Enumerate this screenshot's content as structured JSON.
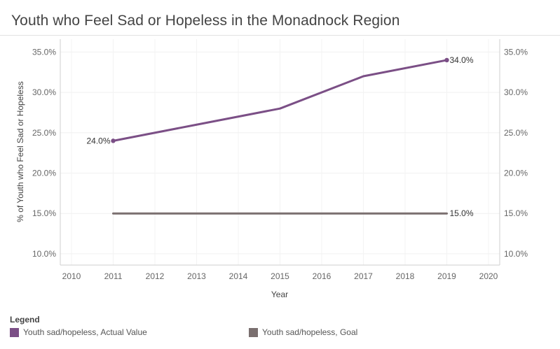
{
  "title": "Youth who Feel Sad or Hopeless in the Monadnock Region",
  "chart_data": {
    "type": "line",
    "title": "Youth who Feel Sad or Hopeless in the Monadnock Region",
    "xlabel": "Year",
    "ylabel": "% of Youth who Feel Sad or Hopeless",
    "xlim": [
      2010,
      2020
    ],
    "ylim": [
      10,
      35
    ],
    "x_ticks": [
      "2010",
      "2011",
      "2012",
      "2013",
      "2014",
      "2015",
      "2016",
      "2017",
      "2018",
      "2019",
      "2020"
    ],
    "y_ticks": [
      "10.0%",
      "15.0%",
      "20.0%",
      "25.0%",
      "30.0%",
      "35.0%"
    ],
    "y_tick_values": [
      10,
      15,
      20,
      25,
      30,
      35
    ],
    "grid": true,
    "series": [
      {
        "name": "Youth sad/hopeless, Actual Value",
        "color": "#7b4f86",
        "x": [
          2011,
          2013,
          2015,
          2017,
          2019
        ],
        "values": [
          24,
          26,
          28,
          32,
          34
        ],
        "labels": [
          {
            "x": 2011,
            "text": "24.0%",
            "side": "left"
          },
          {
            "x": 2019,
            "text": "34.0%",
            "side": "right"
          }
        ]
      },
      {
        "name": "Youth sad/hopeless, Goal",
        "color": "#7a6f6f",
        "x": [
          2011,
          2019
        ],
        "values": [
          15,
          15
        ],
        "labels": [
          {
            "x": 2019,
            "text": "15.0%",
            "side": "right"
          }
        ]
      }
    ],
    "legend": {
      "title": "Legend",
      "placement": "bottom-left"
    }
  }
}
